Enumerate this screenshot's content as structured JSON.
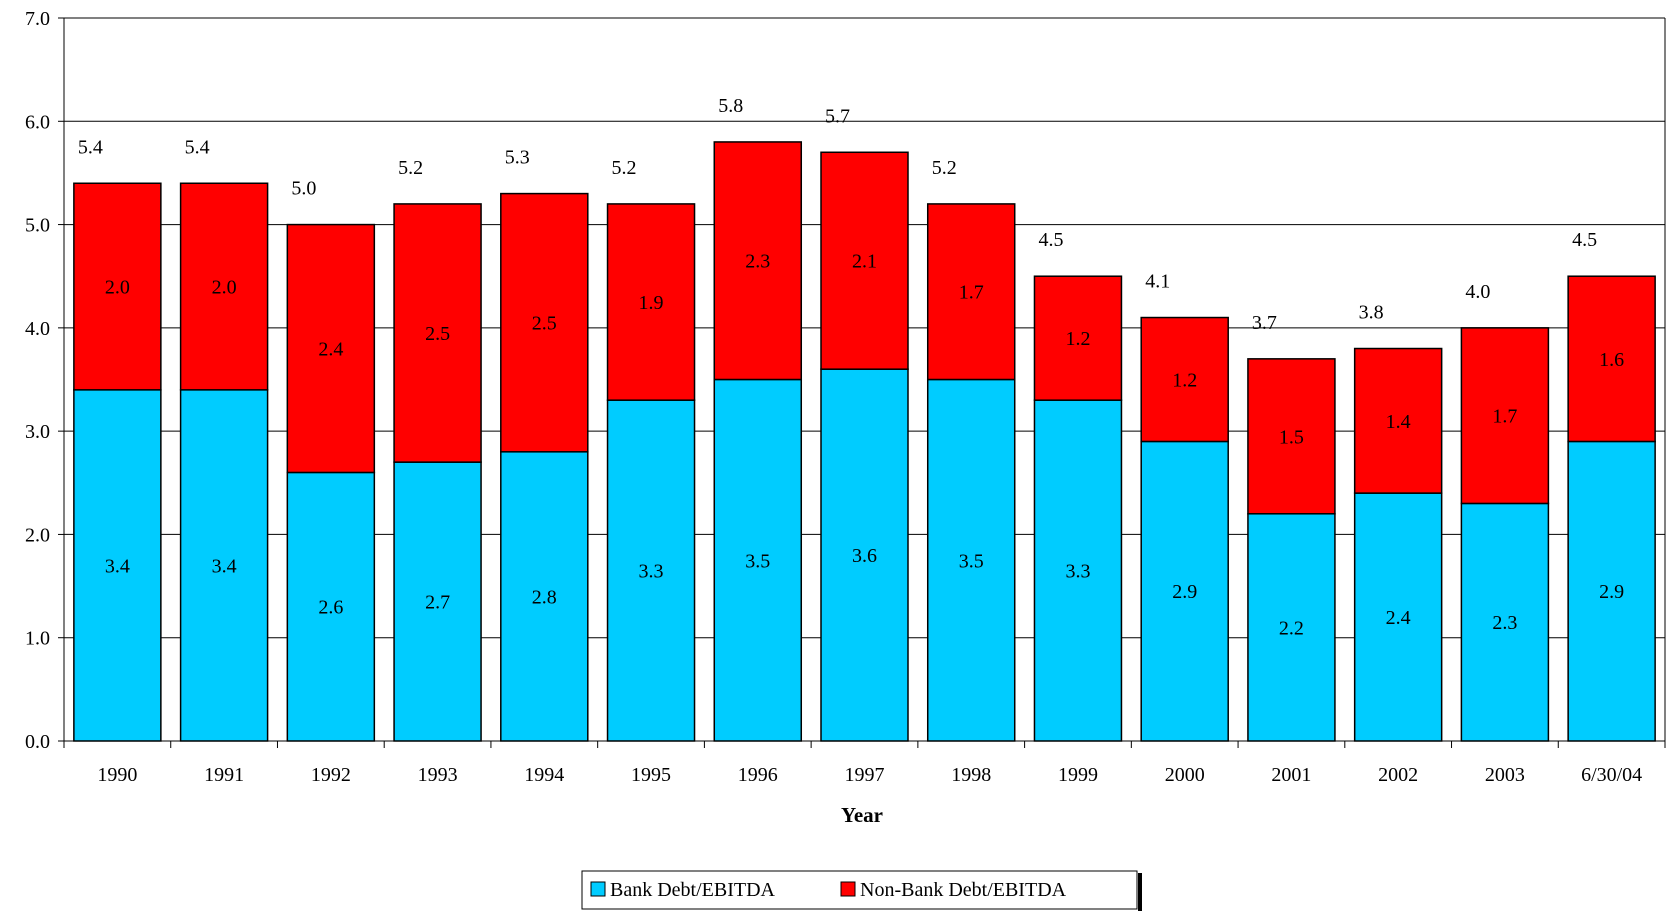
{
  "chart_data": {
    "type": "bar",
    "stacked": true,
    "categories": [
      "1990",
      "1991",
      "1992",
      "1993",
      "1994",
      "1995",
      "1996",
      "1997",
      "1998",
      "1999",
      "2000",
      "2001",
      "2002",
      "2003",
      "6/30/04"
    ],
    "series": [
      {
        "name": "Bank Debt/EBITDA",
        "color": "#00CCFF",
        "values": [
          3.4,
          3.4,
          2.6,
          2.7,
          2.8,
          3.3,
          3.5,
          3.6,
          3.5,
          3.3,
          2.9,
          2.2,
          2.4,
          2.3,
          2.9
        ]
      },
      {
        "name": "Non-Bank Debt/EBITDA",
        "color": "#FF0000",
        "values": [
          2.0,
          2.0,
          2.4,
          2.5,
          2.5,
          1.9,
          2.3,
          2.1,
          1.7,
          1.2,
          1.2,
          1.5,
          1.4,
          1.7,
          1.6
        ]
      }
    ],
    "totals": [
      5.4,
      5.4,
      5.0,
      5.2,
      5.3,
      5.2,
      5.8,
      5.7,
      5.2,
      4.5,
      4.1,
      3.7,
      3.8,
      4.0,
      4.5
    ],
    "xlabel": "Year",
    "ylabel": "",
    "ylim": [
      0,
      7
    ],
    "yticks": [
      "0.0",
      "1.0",
      "2.0",
      "3.0",
      "4.0",
      "5.0",
      "6.0",
      "7.0"
    ],
    "grid": true,
    "legend_position": "bottom-center"
  }
}
